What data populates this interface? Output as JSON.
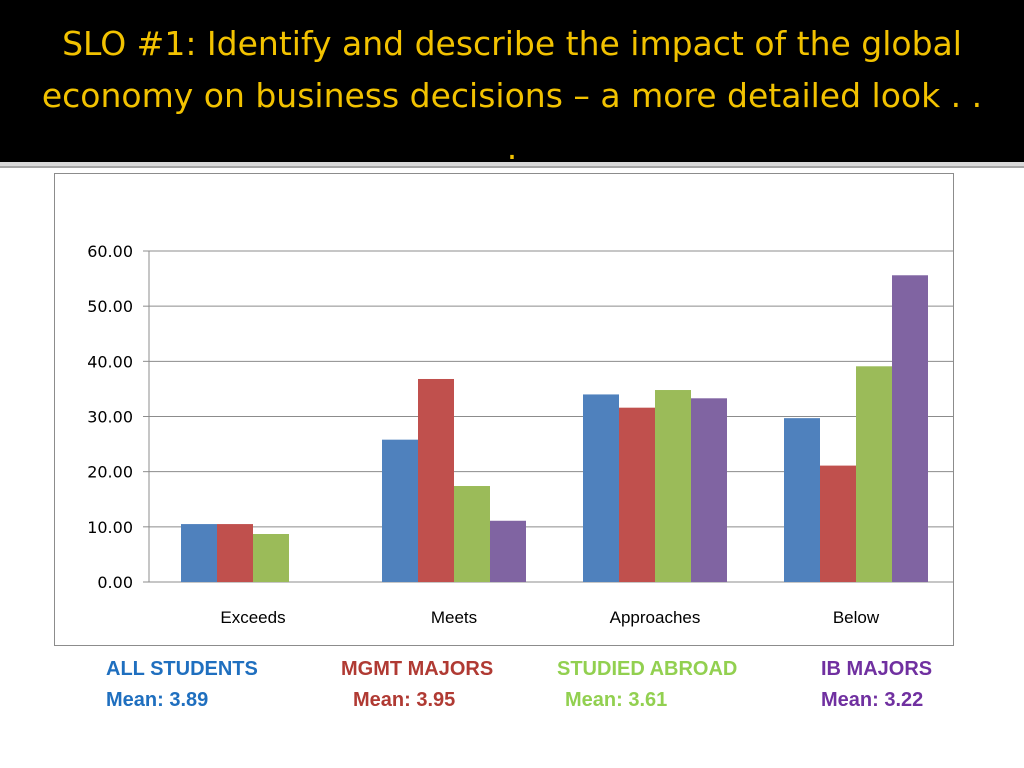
{
  "slide": {
    "title": "SLO #1:  Identify and describe the impact of the global economy on business decisions – a more detailed look . . ."
  },
  "chart_data": {
    "type": "bar",
    "categories": [
      "Exceeds",
      "Meets",
      "Approaches",
      "Below"
    ],
    "series": [
      {
        "name": "ALL STUDENTS",
        "values": [
          10.5,
          25.8,
          34.0,
          29.7
        ],
        "color": "#4f81bd"
      },
      {
        "name": "MGMT MAJORS",
        "values": [
          10.5,
          36.8,
          31.6,
          21.1
        ],
        "color": "#c0504d"
      },
      {
        "name": "STUDIED ABROAD",
        "values": [
          8.7,
          17.4,
          34.8,
          39.1
        ],
        "color": "#9bbb59"
      },
      {
        "name": "IB MAJORS",
        "values": [
          0,
          11.1,
          33.3,
          55.6
        ],
        "color": "#8064a2"
      }
    ],
    "yticks": [
      "0.00",
      "10.00",
      "20.00",
      "30.00",
      "40.00",
      "50.00",
      "60.00"
    ],
    "ylim": [
      0,
      60
    ],
    "grid": true,
    "legend_placement": "bottom"
  },
  "legend": [
    {
      "label": "ALL STUDENTS",
      "mean": "Mean: 3.89",
      "color": "#1f6fbf"
    },
    {
      "label": "MGMT MAJORS",
      "mean": "Mean: 3.95",
      "color": "#b03a33"
    },
    {
      "label": "STUDIED ABROAD",
      "mean": "Mean: 3.61",
      "color": "#92d050"
    },
    {
      "label": "IB MAJORS",
      "mean": "Mean: 3.22",
      "color": "#7030a0"
    }
  ]
}
